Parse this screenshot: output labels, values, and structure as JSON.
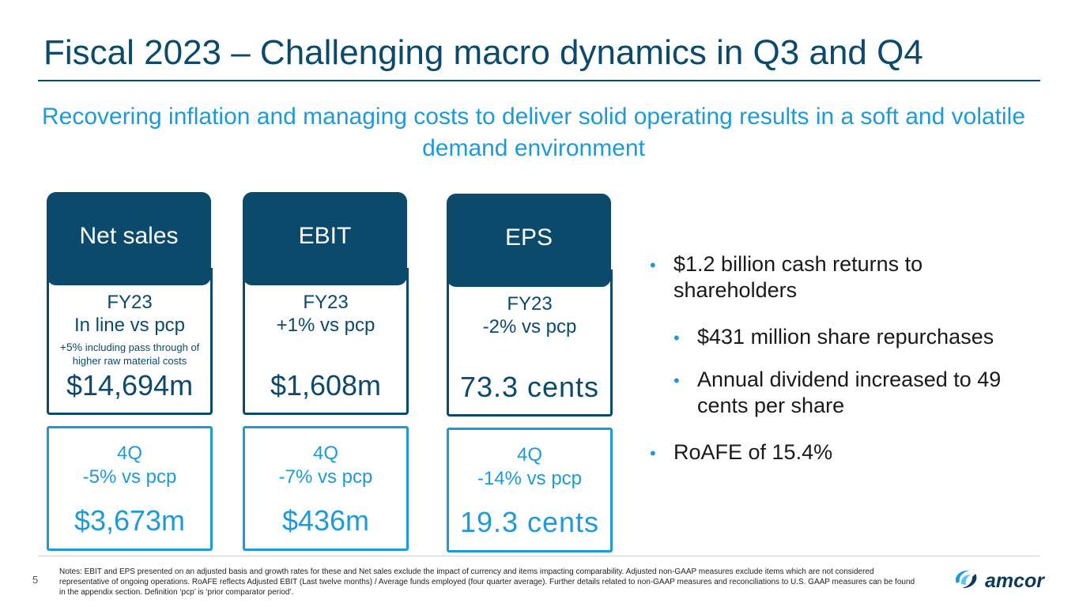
{
  "slide": {
    "title": "Fiscal 2023 – Challenging macro dynamics in Q3 and Q4",
    "subtitle": "Recovering inflation and managing costs to deliver solid operating results in a soft and volatile demand environment",
    "page_number": "5"
  },
  "kpis": [
    {
      "header": "Net sales",
      "fy_label": "FY23",
      "fy_change": "In line vs pcp",
      "fy_note_lead": "+5%",
      "fy_note_rest": " including pass through of higher raw material costs",
      "fy_value": "$14,694m",
      "q_label": "4Q",
      "q_change": "-5% vs pcp",
      "q_value": "$3,673m"
    },
    {
      "header": "EBIT",
      "fy_label": "FY23",
      "fy_change": "+1% vs pcp",
      "fy_value": "$1,608m",
      "q_label": "4Q",
      "q_change": "-7% vs pcp",
      "q_value": "$436m"
    },
    {
      "header": "EPS",
      "fy_label": "FY23",
      "fy_change": "-2% vs pcp",
      "fy_value": "73.3 cents",
      "q_label": "4Q",
      "q_change": "-14% vs pcp",
      "q_value": "19.3 cents"
    }
  ],
  "bullets": [
    {
      "text": "$1.2 billion cash returns to shareholders",
      "level": 1
    },
    {
      "text": "$431 million share repurchases",
      "level": 2
    },
    {
      "text": "Annual dividend increased to 49 cents per share",
      "level": 2
    },
    {
      "text": "RoAFE of 15.4%",
      "level": 1
    }
  ],
  "footer": {
    "notes": "Notes: EBIT and EPS presented on an adjusted basis and growth rates for these and Net sales exclude the impact of currency and items impacting comparability.  Adjusted non-GAAP measures exclude items which are not considered representative of ongoing operations.   RoAFE reflects Adjusted EBIT (Last twelve months) /  Average funds employed (four quarter average).  Further details related to non-GAAP measures and reconciliations to U.S. GAAP measures can be found in the appendix section. Definition ‘pcp’ is ‘prior comparator period’.",
    "logo_text": "amcor"
  },
  "colors": {
    "navy": "#0b4a6a",
    "accent_blue": "#1e9ad6"
  },
  "icons": {
    "logo": "amcor-swirl-icon",
    "bullet": "bullet-dot"
  }
}
